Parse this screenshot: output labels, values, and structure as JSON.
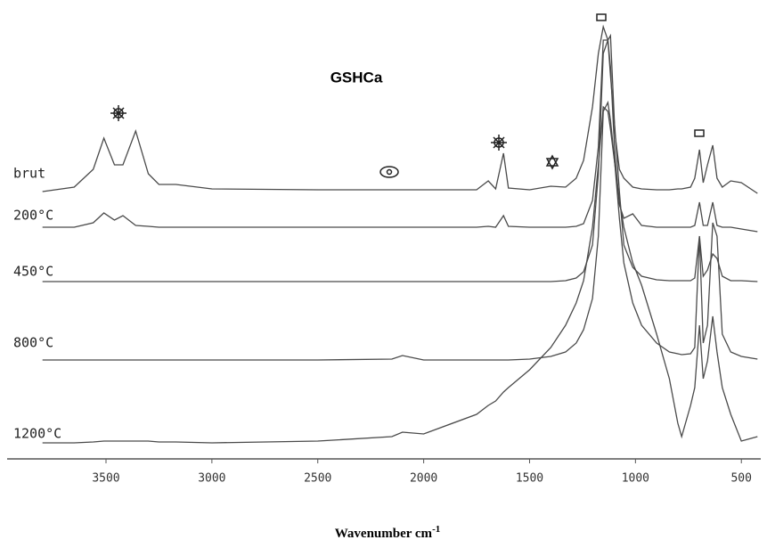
{
  "chart_data": {
    "type": "line",
    "title": "GSHCa",
    "xlabel": "Wavenumber cm",
    "xlabel_superscript": "-1",
    "x": [
      3800,
      3650,
      3560,
      3510,
      3460,
      3420,
      3360,
      3300,
      3250,
      3170,
      3000,
      2500,
      2150,
      2100,
      2000,
      1750,
      1695,
      1660,
      1623,
      1600,
      1500,
      1400,
      1330,
      1280,
      1245,
      1203,
      1175,
      1152,
      1130,
      1118,
      1097,
      1076,
      1055,
      1013,
      971,
      900,
      840,
      800,
      782,
      740,
      720,
      698,
      680,
      660,
      635,
      615,
      590,
      550,
      500,
      424
    ],
    "xlim": [
      3950,
      400
    ],
    "xticks": [
      3500,
      3000,
      2500,
      2000,
      1500,
      1000,
      500
    ],
    "ylim": [
      0,
      505
    ],
    "series": [
      {
        "name": "brut",
        "color": "#4a4a4a",
        "values": [
          300,
          305,
          325,
          360,
          330,
          330,
          368,
          320,
          308,
          308,
          303,
          302,
          302,
          302,
          302,
          302,
          312,
          303,
          343,
          304,
          302,
          306,
          305,
          315,
          335,
          395,
          455,
          485,
          470,
          475,
          365,
          325,
          315,
          305,
          303,
          302,
          302,
          303,
          303,
          305,
          315,
          347,
          310,
          330,
          352,
          315,
          305,
          312,
          310,
          298
        ]
      },
      {
        "name": "200°C",
        "color": "#4a4a4a",
        "values": [
          260,
          260,
          265,
          276,
          268,
          273,
          262,
          261,
          260,
          260,
          260,
          260,
          260,
          260,
          260,
          260,
          261,
          260,
          273,
          261,
          260,
          260,
          260,
          261,
          264,
          290,
          350,
          470,
          470,
          440,
          340,
          285,
          270,
          275,
          262,
          260,
          260,
          260,
          260,
          260,
          262,
          288,
          262,
          262,
          288,
          262,
          260,
          260,
          258,
          255
        ]
      },
      {
        "name": "450°C",
        "color": "#4a4a4a",
        "values": [
          199,
          199,
          199,
          199,
          199,
          199,
          199,
          199,
          199,
          199,
          199,
          199,
          199,
          199,
          199,
          199,
          199,
          199,
          199,
          199,
          199,
          199,
          200,
          203,
          210,
          240,
          320,
          455,
          470,
          430,
          370,
          300,
          240,
          215,
          205,
          201,
          200,
          200,
          200,
          200,
          203,
          250,
          205,
          212,
          230,
          225,
          205,
          200,
          200,
          199
        ]
      },
      {
        "name": "800°C",
        "color": "#4a4a4a",
        "values": [
          111,
          111,
          111,
          111,
          111,
          111,
          111,
          111,
          111,
          111,
          111,
          111,
          112,
          116,
          111,
          111,
          111,
          111,
          111,
          111,
          112,
          115,
          120,
          130,
          145,
          180,
          250,
          390,
          400,
          380,
          330,
          270,
          220,
          175,
          150,
          130,
          120,
          118,
          117,
          118,
          125,
          250,
          130,
          150,
          265,
          250,
          140,
          120,
          115,
          112
        ]
      },
      {
        "name": "1200°C",
        "color": "#4a4a4a",
        "values": [
          18,
          18,
          19,
          20,
          20,
          20,
          20,
          20,
          19,
          19,
          18,
          20,
          25,
          30,
          28,
          50,
          60,
          65,
          75,
          80,
          100,
          125,
          150,
          175,
          200,
          260,
          330,
          395,
          390,
          370,
          330,
          290,
          260,
          220,
          195,
          140,
          90,
          40,
          25,
          60,
          80,
          150,
          90,
          110,
          160,
          120,
          80,
          50,
          20,
          25
        ]
      }
    ]
  }
}
